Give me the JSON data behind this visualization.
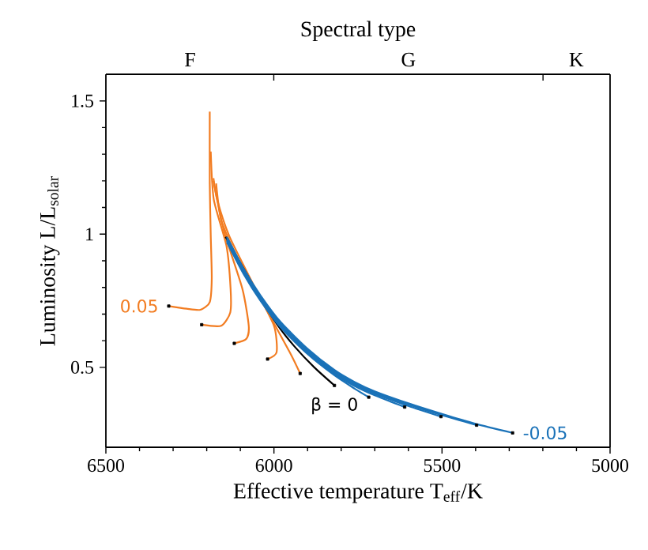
{
  "chart_data": {
    "type": "line",
    "x2label": "Spectral type",
    "xlabel": "Effective temperature T$_{eff}$/K",
    "ylabel": "Luminosity L/L$_{solar}$",
    "xlim": [
      6500,
      5000
    ],
    "xticks": [
      6500,
      6000,
      5500,
      5000
    ],
    "ylim": [
      0.2,
      1.6
    ],
    "yticks": [
      0.5,
      1,
      1.5
    ],
    "annotations": [
      "F",
      "G",
      "K"
    ],
    "series": [
      {
        "name": "0.05",
        "color": "#f27c21",
        "x": [
          6313,
          6260,
          6219,
          6191,
          6185,
          6188,
          6191,
          6191
        ],
        "values": [
          0.73,
          0.72,
          0.716,
          0.745,
          0.835,
          0.993,
          1.19,
          1.46
        ]
      },
      {
        "color": "#f27c21",
        "x": [
          6215,
          6157,
          6130,
          6129,
          6141,
          6179,
          6188
        ],
        "values": [
          0.66,
          0.656,
          0.706,
          0.795,
          0.954,
          1.13,
          1.31
        ]
      },
      {
        "color": "#f27c21",
        "x": [
          6118,
          6082,
          6075,
          6094,
          6149,
          6180
        ],
        "values": [
          0.59,
          0.607,
          0.656,
          0.795,
          1.013,
          1.2
        ]
      },
      {
        "color": "#f27c21",
        "x": [
          6019,
          5992,
          6000,
          6063,
          6133,
          6169,
          6180
        ],
        "values": [
          0.531,
          0.557,
          0.656,
          0.815,
          0.993,
          1.13,
          1.21
        ]
      },
      {
        "color": "#f27c21",
        "x": [
          5922,
          5953,
          6031,
          6110,
          6157,
          6172
        ],
        "values": [
          0.477,
          0.557,
          0.736,
          0.914,
          1.053,
          1.19
        ]
      },
      {
        "name": "β = 0",
        "color": "#000000",
        "x": [
          5820,
          5880,
          5940,
          5990,
          6040,
          6090,
          6144
        ],
        "values": [
          0.432,
          0.5,
          0.58,
          0.66,
          0.76,
          0.87,
          0.99
        ]
      },
      {
        "color": "#1a72b8",
        "x": [
          5718,
          5760,
          5820,
          5900,
          5980,
          6040,
          6090,
          6140
        ],
        "values": [
          0.388,
          0.42,
          0.47,
          0.55,
          0.65,
          0.75,
          0.85,
          0.97
        ]
      },
      {
        "color": "#1a72b8",
        "x": [
          5611,
          5700,
          5760,
          5820,
          5900,
          5980,
          6040,
          6090,
          6140
        ],
        "values": [
          0.351,
          0.395,
          0.43,
          0.475,
          0.555,
          0.655,
          0.755,
          0.855,
          0.975
        ]
      },
      {
        "color": "#1a72b8",
        "x": [
          5503,
          5600,
          5700,
          5760,
          5820,
          5900,
          5980,
          6040,
          6090,
          6140
        ],
        "values": [
          0.315,
          0.355,
          0.4,
          0.435,
          0.48,
          0.56,
          0.66,
          0.76,
          0.86,
          0.98
        ]
      },
      {
        "color": "#1a72b8",
        "x": [
          5397,
          5500,
          5600,
          5700,
          5760,
          5820,
          5900,
          5980,
          6040,
          6090,
          6140
        ],
        "values": [
          0.283,
          0.32,
          0.36,
          0.405,
          0.44,
          0.485,
          0.565,
          0.665,
          0.765,
          0.865,
          0.985
        ]
      },
      {
        "name": "-0.05",
        "color": "#1a72b8",
        "x": [
          5290,
          5400,
          5500,
          5600,
          5700,
          5760,
          5820,
          5900,
          5980,
          6040,
          6090,
          6140
        ],
        "values": [
          0.254,
          0.288,
          0.325,
          0.365,
          0.41,
          0.445,
          0.49,
          0.57,
          0.67,
          0.77,
          0.87,
          0.99
        ]
      },
      {
        "type": "scatter",
        "color": "#000000",
        "x": [
          6313,
          6215,
          6118,
          6019,
          5922,
          5820,
          5718,
          5611,
          5503,
          5397,
          5290
        ],
        "values": [
          0.73,
          0.66,
          0.59,
          0.531,
          0.477,
          0.432,
          0.388,
          0.351,
          0.315,
          0.283,
          0.254
        ]
      }
    ]
  }
}
